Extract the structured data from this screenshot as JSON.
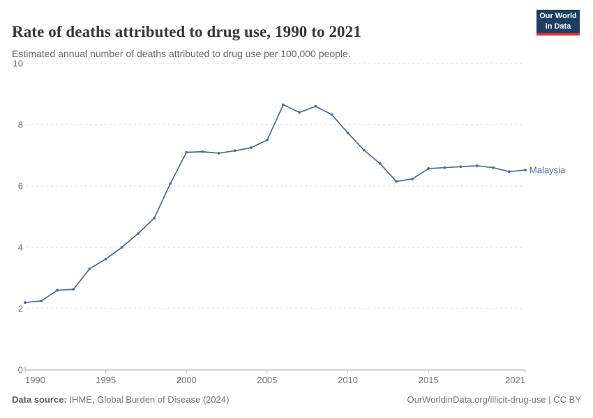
{
  "header": {
    "title": "Rate of deaths attributed to drug use, 1990 to 2021",
    "subtitle": "Estimated annual number of deaths attributed to drug use per 100,000 people."
  },
  "logo": {
    "line1": "Our World",
    "line2": "in Data",
    "bg_color": "#1d3d63",
    "bar_color": "#dc3330"
  },
  "chart_data": {
    "type": "line",
    "title": "Rate of deaths attributed to drug use, 1990 to 2021",
    "xlabel": "",
    "ylabel": "",
    "xlim": [
      1990,
      2021
    ],
    "ylim": [
      0,
      10
    ],
    "x_ticks": [
      1990,
      1995,
      2000,
      2005,
      2010,
      2015,
      2021
    ],
    "y_ticks": [
      0,
      2,
      4,
      6,
      8,
      10
    ],
    "grid": "horizontal-dashed",
    "legend_position": "line-end-label",
    "series": [
      {
        "name": "Malaysia",
        "color": "#4C6A9C",
        "x": [
          1990,
          1991,
          1992,
          1993,
          1994,
          1995,
          1996,
          1997,
          1998,
          1999,
          2000,
          2001,
          2002,
          2003,
          2004,
          2005,
          2006,
          2007,
          2008,
          2009,
          2010,
          2011,
          2012,
          2013,
          2014,
          2015,
          2016,
          2017,
          2018,
          2019,
          2020,
          2021
        ],
        "values": [
          2.2,
          2.25,
          2.6,
          2.63,
          3.3,
          3.62,
          4.0,
          4.45,
          4.95,
          6.08,
          7.1,
          7.12,
          7.07,
          7.15,
          7.25,
          7.5,
          8.65,
          8.4,
          8.6,
          8.33,
          7.73,
          7.17,
          6.73,
          6.15,
          6.23,
          6.57,
          6.6,
          6.63,
          6.66,
          6.6,
          6.47,
          6.52
        ]
      }
    ]
  },
  "footer": {
    "datasource_label": "Data source:",
    "datasource_value": " IHME, Global Burden of Disease (2024)",
    "attribution": "OurWorldinData.org/illicit-drug-use | CC BY"
  },
  "colors": {
    "line": "#4C6A9C",
    "gridline": "#dcdcdc",
    "axis": "#a5a5a5",
    "tick": "#bdbdbd",
    "tick_label": "#737373"
  }
}
